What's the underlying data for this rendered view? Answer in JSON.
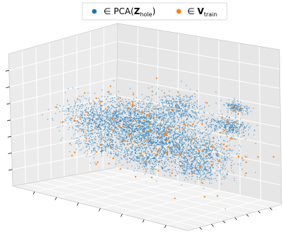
{
  "chart_data": {
    "type": "scatter",
    "projection": "3d",
    "title": "",
    "xlabel": "",
    "ylabel": "",
    "zlabel": "",
    "tick_labels_visible": false,
    "grid": true,
    "legend_placement": "top-center",
    "xlim": [
      0,
      10
    ],
    "ylim": [
      0,
      10
    ],
    "zlim": [
      0,
      10
    ],
    "series": [
      {
        "name": "∈ PCA(Z_hole)",
        "legend_symbol": "∈ PCA(",
        "legend_bold": "Z",
        "legend_sub": "hole",
        "legend_close": ")",
        "color": "#1f77b4",
        "marker_size": 1.5,
        "clusters": [
          {
            "center": [
              5.0,
              5.0,
              5.2
            ],
            "spread": [
              1.6,
              1.6,
              0.9
            ],
            "count": 1600
          },
          {
            "center": [
              3.4,
              6.0,
              5.3
            ],
            "spread": [
              1.2,
              1.1,
              0.7
            ],
            "count": 700
          },
          {
            "center": [
              6.4,
              4.0,
              4.8
            ],
            "spread": [
              1.2,
              1.1,
              0.7
            ],
            "count": 650
          },
          {
            "center": [
              3.0,
              3.2,
              5.6
            ],
            "spread": [
              0.9,
              0.8,
              0.6
            ],
            "count": 450
          },
          {
            "center": [
              7.2,
              6.2,
              3.8
            ],
            "spread": [
              0.9,
              0.8,
              0.7
            ],
            "count": 500
          },
          {
            "center": [
              8.8,
              6.4,
              6.6
            ],
            "spread": [
              0.5,
              0.5,
              0.3
            ],
            "count": 320
          },
          {
            "center": [
              5.2,
              7.6,
              6.6
            ],
            "spread": [
              0.7,
              0.6,
              0.5
            ],
            "count": 450
          },
          {
            "center": [
              7.8,
              8.8,
              7.4
            ],
            "spread": [
              0.3,
              0.3,
              0.2
            ],
            "count": 160
          },
          {
            "center": [
              3.6,
              2.6,
              3.9
            ],
            "spread": [
              0.7,
              0.6,
              0.4
            ],
            "count": 260
          },
          {
            "center": [
              6.0,
              2.8,
              3.6
            ],
            "spread": [
              0.6,
              0.5,
              0.4
            ],
            "count": 260
          },
          {
            "center": [
              8.4,
              3.6,
              3.6
            ],
            "spread": [
              0.6,
              0.5,
              0.4
            ],
            "count": 280
          }
        ]
      },
      {
        "name": "∈ V_train",
        "legend_symbol": "∈ ",
        "legend_bold": "V",
        "legend_sub": "train",
        "legend_close": "",
        "color": "#ff7f0e",
        "marker_size": 2.4,
        "clusters": [
          {
            "center": [
              5.2,
              5.0,
              5.0
            ],
            "spread": [
              2.2,
              2.2,
              1.5
            ],
            "count": 160
          },
          {
            "center": [
              7.5,
              8.4,
              6.5
            ],
            "spread": [
              0.6,
              0.6,
              1.0
            ],
            "count": 8
          }
        ]
      }
    ]
  }
}
